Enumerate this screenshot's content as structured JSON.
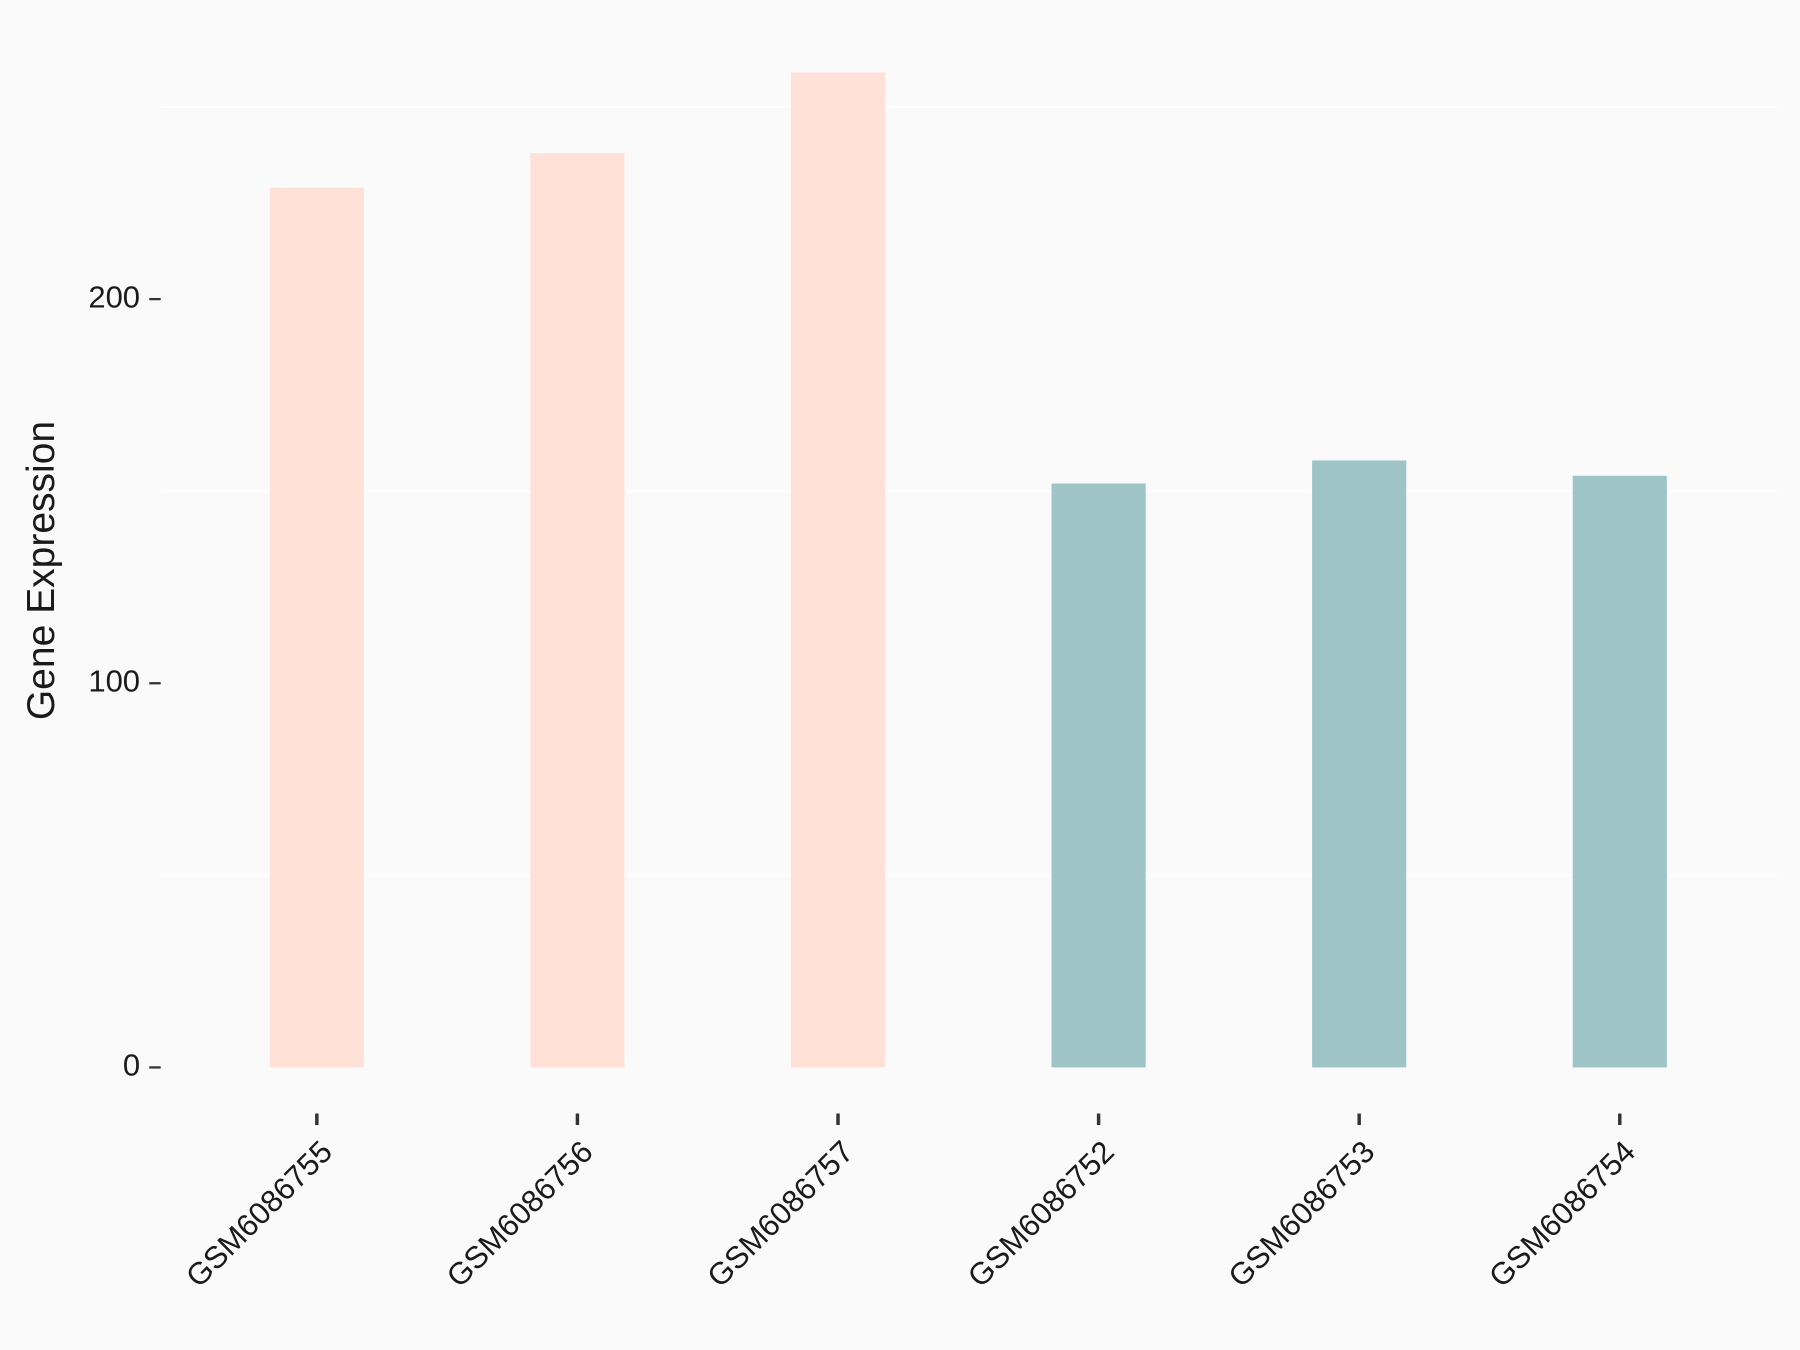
{
  "chart_data": {
    "type": "bar",
    "y_label": "Gene Expression",
    "categories": [
      "GSM6086755",
      "GSM6086756",
      "GSM6086757",
      "GSM6086752",
      "GSM6086753",
      "GSM6086754"
    ],
    "values": [
      229,
      238,
      259,
      152,
      158,
      154
    ],
    "colors": [
      "#ffe1d8",
      "#ffe1d8",
      "#ffe1d8",
      "#9fc4c8",
      "#9fc4c8",
      "#9fc4c8"
    ],
    "ylim": [
      -12,
      268
    ],
    "yticks": [
      0,
      100,
      200
    ],
    "minor_grid": true
  }
}
